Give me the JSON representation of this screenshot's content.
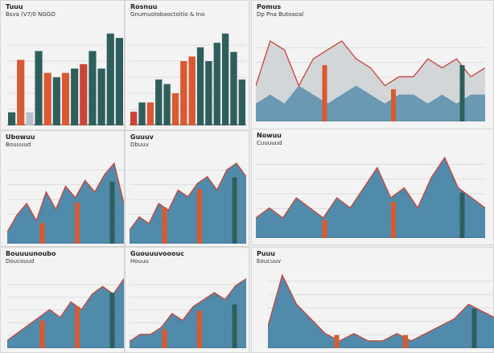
{
  "colors": {
    "teal": "#2f5f5c",
    "orange": "#d85a32",
    "red": "#c8453a",
    "blue": "#3e7fa3",
    "grey": "#b8bfc4",
    "green": "#3b8a6e"
  },
  "chart_data": [
    {
      "type": "bar",
      "title": "Tuuu",
      "subtitle": "Bsva (V7/0 NGGO",
      "values": [
        3,
        15,
        3,
        17,
        12,
        11,
        12,
        13,
        14,
        17,
        13,
        21,
        20
      ],
      "colors": [
        "teal",
        "orange",
        "grey",
        "teal",
        "orange",
        "teal",
        "orange",
        "teal",
        "red",
        "teal",
        "teal",
        "teal",
        "teal"
      ]
    },
    {
      "type": "bar",
      "title": "Rosnuu",
      "subtitle": "Gnumuotobaoctoitio & Ino",
      "values": [
        3,
        5,
        5,
        10,
        9,
        7,
        14,
        15,
        17,
        14,
        18,
        20,
        16,
        10
      ],
      "colors": [
        "red",
        "teal",
        "orange",
        "teal",
        "teal",
        "orange",
        "orange",
        "orange",
        "teal",
        "teal",
        "teal",
        "teal",
        "teal",
        "teal"
      ]
    },
    {
      "type": "area",
      "title": "Pomus",
      "subtitle": "Dp Pna Butoaoal",
      "series": [
        {
          "name": "line",
          "values": [
            4,
            9,
            8,
            4,
            7,
            8,
            9,
            7,
            6,
            4,
            5,
            5,
            7,
            6,
            7,
            5,
            6
          ]
        },
        {
          "name": "area",
          "values": [
            2,
            3,
            2,
            4,
            3,
            2,
            3,
            4,
            3,
            2,
            3,
            3,
            2,
            3,
            2,
            3,
            3
          ]
        }
      ]
    },
    {
      "type": "area",
      "title": "Ubowuu",
      "subtitle": "Bouuuud",
      "values": [
        2,
        5,
        7,
        4,
        9,
        6,
        10,
        8,
        11,
        9,
        12,
        14,
        7
      ]
    },
    {
      "type": "area",
      "title": "Guuuv",
      "subtitle": "Dbuuv",
      "values": [
        2,
        4,
        3,
        6,
        5,
        8,
        7,
        9,
        10,
        8,
        11,
        12,
        10
      ]
    },
    {
      "type": "area",
      "title": "Nowuu",
      "subtitle": "Cuuuuud",
      "values": [
        2,
        3,
        2,
        4,
        3,
        2,
        4,
        3,
        5,
        7,
        4,
        5,
        3,
        6,
        8,
        5,
        4,
        3
      ]
    },
    {
      "type": "area",
      "title": "Bouuuunoubo",
      "subtitle": "Doucouud",
      "values": [
        1,
        2,
        3,
        4,
        5,
        4,
        6,
        5,
        7,
        8,
        7,
        9
      ]
    },
    {
      "type": "area",
      "title": "Guouuuvooouc",
      "subtitle": "Houuu",
      "values": [
        1,
        2,
        2,
        3,
        5,
        4,
        6,
        7,
        8,
        7,
        9,
        10
      ]
    },
    {
      "type": "area",
      "title": "Puuu",
      "subtitle": "Eoucuuv",
      "values": [
        3,
        10,
        6,
        4,
        2,
        1,
        2,
        1,
        1,
        2,
        1,
        2,
        3,
        4,
        6,
        5,
        4
      ]
    }
  ]
}
